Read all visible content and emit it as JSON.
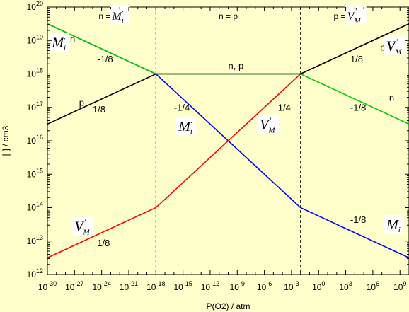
{
  "chart_data": {
    "type": "line",
    "xlabel": "P(O2) / atm",
    "ylabel": "[ ] / cm3",
    "xlim": [
      -30,
      10
    ],
    "ylim": [
      12,
      20
    ],
    "x_scale": "log",
    "y_scale": "log",
    "x_ticks": [
      {
        "base": "10",
        "exp": "-30"
      },
      {
        "base": "10",
        "exp": "-27"
      },
      {
        "base": "10",
        "exp": "-24"
      },
      {
        "base": "10",
        "exp": "-21"
      },
      {
        "base": "10",
        "exp": "-18"
      },
      {
        "base": "10",
        "exp": "-15"
      },
      {
        "base": "10",
        "exp": "-12"
      },
      {
        "base": "10",
        "exp": "-9"
      },
      {
        "base": "10",
        "exp": "-6"
      },
      {
        "base": "10",
        "exp": "-3"
      },
      {
        "base": "10",
        "exp": "0"
      },
      {
        "base": "10",
        "exp": "3"
      },
      {
        "base": "10",
        "exp": "6"
      },
      {
        "base": "10",
        "exp": "9"
      }
    ],
    "y_ticks": [
      {
        "base": "10",
        "exp": "12"
      },
      {
        "base": "10",
        "exp": "13"
      },
      {
        "base": "10",
        "exp": "14"
      },
      {
        "base": "10",
        "exp": "15"
      },
      {
        "base": "10",
        "exp": "16"
      },
      {
        "base": "10",
        "exp": "17"
      },
      {
        "base": "10",
        "exp": "18"
      },
      {
        "base": "10",
        "exp": "19"
      },
      {
        "base": "10",
        "exp": "20"
      }
    ],
    "boundaries": [
      -18,
      -2
    ],
    "region_labels": [
      {
        "text": "n = ",
        "defect": "Mi",
        "x": -23
      },
      {
        "text": "n = p",
        "defect": "",
        "x": -10
      },
      {
        "text": "p = ",
        "defect": "VM",
        "x": 3
      }
    ],
    "series": [
      {
        "color": "#0000ff",
        "x": [
          -30,
          -18,
          -2,
          10
        ],
        "y": [
          19.5,
          18,
          14,
          12.5
        ]
      },
      {
        "color": "#ff0000",
        "x": [
          -30,
          -18,
          -2,
          10
        ],
        "y": [
          12.5,
          14,
          18,
          19.5
        ]
      },
      {
        "color": "#00cc00",
        "x": [
          -30,
          -18,
          -2,
          10
        ],
        "y": [
          19.5,
          18,
          18,
          16.5
        ]
      },
      {
        "color": "#000000",
        "x": [
          -30,
          -18,
          -2,
          10
        ],
        "y": [
          16.5,
          18,
          18,
          19.5
        ]
      }
    ],
    "annotations": {
      "slopes": [
        {
          "text": "-1/8",
          "x": -24.5,
          "y": 18.35
        },
        {
          "text": "1/8",
          "x": -25,
          "y": 16.85
        },
        {
          "text": "-1/4",
          "x": -16,
          "y": 16.9
        },
        {
          "text": "1/4",
          "x": -4.5,
          "y": 16.9
        },
        {
          "text": "1/8",
          "x": 3.5,
          "y": 18.35
        },
        {
          "text": "-1/8",
          "x": 3.5,
          "y": 16.9
        },
        {
          "text": "-1/8",
          "x": 3.5,
          "y": 13.55
        },
        {
          "text": "1/8",
          "x": -24.5,
          "y": 12.85
        }
      ],
      "species": [
        {
          "text": "n",
          "x": -27.5,
          "y": 18.95
        },
        {
          "text": "p",
          "x": -26.5,
          "y": 17.05
        },
        {
          "text": "n, p",
          "x": -10,
          "y": 18.15
        },
        {
          "text": "p,",
          "x": 6.8,
          "y": 18.7
        },
        {
          "text": "n",
          "x": 7.8,
          "y": 17.2
        }
      ],
      "defects": [
        {
          "kind": "Mi",
          "x": -29.5,
          "y": 18.8
        },
        {
          "kind": "Mi",
          "x": -15.5,
          "y": 16.3
        },
        {
          "kind": "VM",
          "x": -6.5,
          "y": 16.35
        },
        {
          "kind": "VM",
          "x": -27,
          "y": 13.3
        },
        {
          "kind": "Mi",
          "x": 7.5,
          "y": 13.35
        },
        {
          "kind": "VM",
          "x": 7.5,
          "y": 18.7
        }
      ]
    }
  }
}
